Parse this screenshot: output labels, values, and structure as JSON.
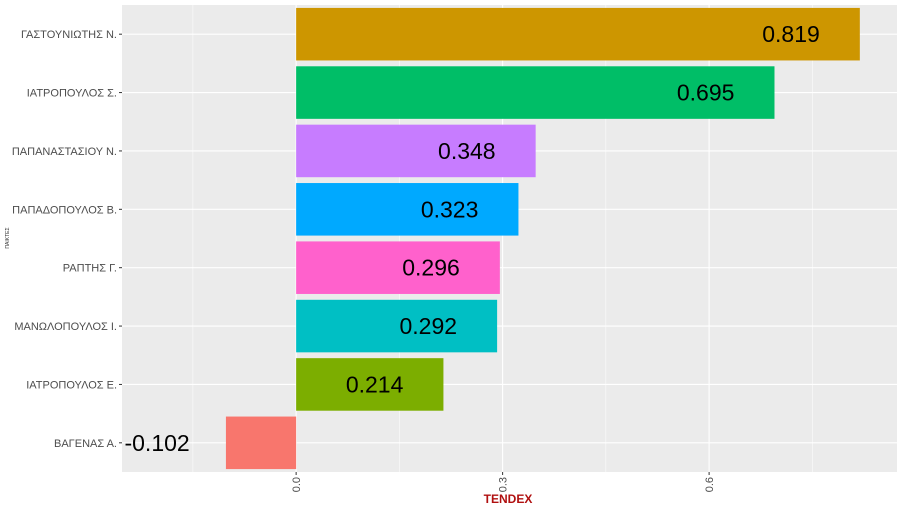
{
  "chart_data": {
    "type": "bar",
    "orientation": "horizontal",
    "title": "",
    "xlabel": "TENDEX",
    "ylabel": "ΠΑΙΚΤΕΣ",
    "xlabel_color": "#B01010",
    "xlim": [
      -0.253,
      0.873
    ],
    "xticks": [
      0.0,
      0.3,
      0.6
    ],
    "xtick_labels": [
      "0.0",
      "0.3",
      "0.6"
    ],
    "grid": true,
    "legend": "none",
    "categories": [
      "ΓΑΣΤΟΥΝΙΩΤΗΣ Ν.",
      "ΙΑΤΡΟΠΟΥΛΟΣ Σ.",
      "ΠΑΠΑΝΑΣΤΑΣΙΟΥ Ν.",
      "ΠΑΠΑΔΟΠΟΥΛΟΣ Β.",
      "ΡΑΠΤΗΣ Γ.",
      "ΜΑΝΩΛΟΠΟΥΛΟΣ Ι.",
      "ΙΑΤΡΟΠΟΥΛΟΣ Ε.",
      "ΒΑΓΕΝΑΣ Α."
    ],
    "values": [
      0.819,
      0.695,
      0.348,
      0.323,
      0.296,
      0.292,
      0.214,
      -0.102
    ],
    "data_labels": [
      "0.819",
      "0.695",
      "0.348",
      "0.323",
      "0.296",
      "0.292",
      "0.214",
      "-0.102"
    ],
    "colors": [
      "#CD9600",
      "#00BE67",
      "#C77CFF",
      "#00A9FF",
      "#FF61CC",
      "#00BFC4",
      "#7CAE00",
      "#F8766D"
    ]
  }
}
